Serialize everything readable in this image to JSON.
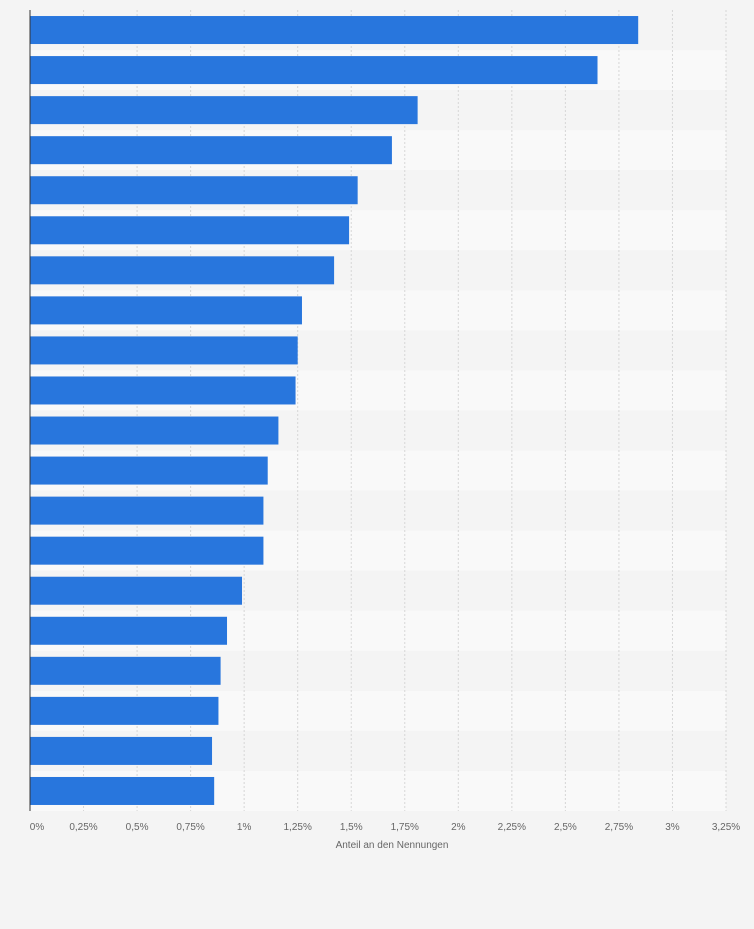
{
  "chart_data": {
    "type": "bar",
    "orientation": "horizontal",
    "title": "",
    "xlabel": "Anteil an den Nennungen",
    "ylabel": "",
    "xlim": [
      0,
      3.25
    ],
    "x_ticks": [
      0,
      0.25,
      0.5,
      0.75,
      1,
      1.25,
      1.5,
      1.75,
      2,
      2.25,
      2.5,
      2.75,
      3,
      3.25
    ],
    "x_tick_labels": [
      "0%",
      "0,25%",
      "0,5%",
      "0,75%",
      "1%",
      "1,25%",
      "1,5%",
      "1,75%",
      "2%",
      "2,25%",
      "2,5%",
      "2,75%",
      "3%",
      "3,25%"
    ],
    "categories": [
      "",
      "",
      "",
      "",
      "",
      "",
      "",
      "",
      "",
      "",
      "",
      "",
      "",
      "",
      "",
      "",
      "",
      "",
      "",
      ""
    ],
    "values": [
      2.84,
      2.65,
      1.81,
      1.69,
      1.53,
      1.49,
      1.42,
      1.27,
      1.25,
      1.24,
      1.16,
      1.11,
      1.09,
      1.09,
      0.99,
      0.92,
      0.89,
      0.88,
      0.85,
      0.86
    ],
    "grid": true,
    "bar_color": "#2876dd"
  }
}
